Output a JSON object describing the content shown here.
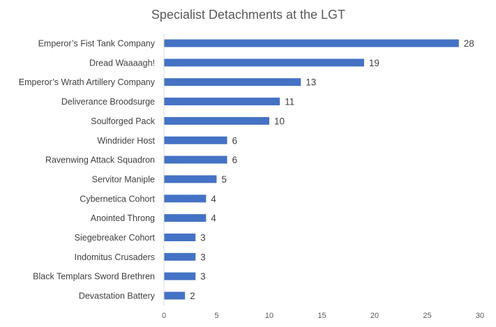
{
  "chart_data": {
    "type": "bar",
    "orientation": "horizontal",
    "title": "Specialist Detachments at the LGT",
    "xlabel": "",
    "ylabel": "",
    "categories": [
      "Emperor’s Fist Tank Company",
      "Dread Waaaagh!",
      "Emperor’s Wrath Artillery Company",
      "Deliverance Broodsurge",
      "Soulforged Pack",
      "Windrider Host",
      "Ravenwing Attack Squadron",
      "Servitor Maniple",
      "Cybernetica Cohort",
      "Anointed Throng",
      "Siegebreaker Cohort",
      "Indomitus Crusaders",
      "Black Templars Sword Brethren",
      "Devastation Battery"
    ],
    "values": [
      28,
      19,
      13,
      11,
      10,
      6,
      6,
      5,
      4,
      4,
      3,
      3,
      3,
      2
    ],
    "value_labels": [
      "28",
      "19",
      "13",
      "11",
      "10",
      "6",
      "6",
      "5",
      "4",
      "4",
      "3",
      "3",
      "3",
      "2"
    ],
    "xlim": [
      0,
      30
    ],
    "x_ticks": [
      "0",
      "5",
      "10",
      "15",
      "20",
      "25",
      "30"
    ],
    "bar_color": "#4472C4",
    "grid": false,
    "legend": "none"
  }
}
